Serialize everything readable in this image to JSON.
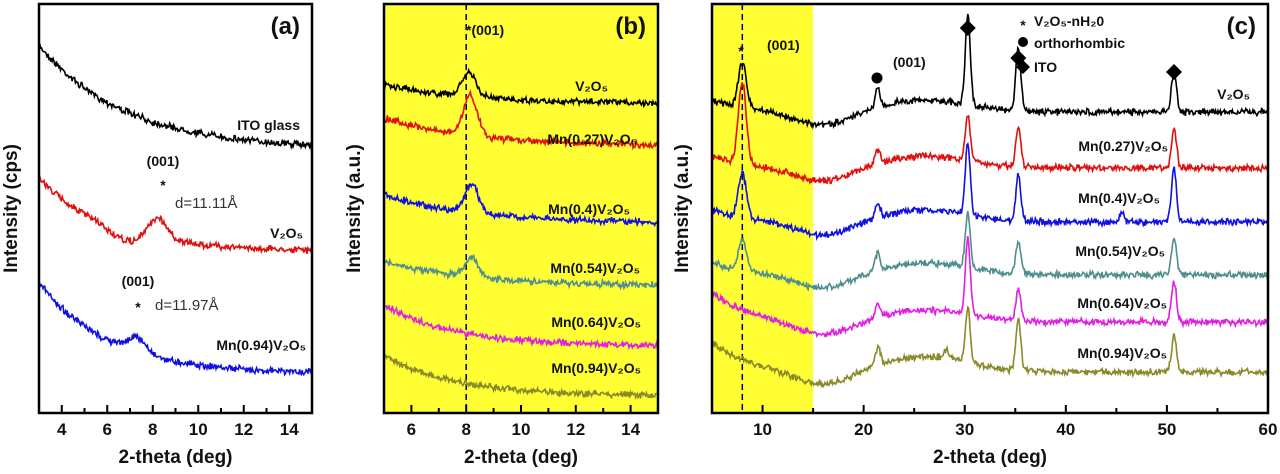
{
  "chart_data": [
    {
      "type": "line",
      "panel_label": "(a)",
      "xlabel": "2-theta (deg)",
      "ylabel": "Intensity (cps)",
      "xlim": [
        3,
        15
      ],
      "xticks": [
        4,
        6,
        8,
        10,
        12,
        14
      ],
      "grid": false,
      "series": [
        {
          "name": "ITO glass",
          "color": "#000000",
          "peaks": []
        },
        {
          "name": "V₂O₅",
          "color": "#e01010",
          "peaks": [
            {
              "x": 8.2,
              "height": 0.6,
              "annotation": "(001)",
              "d": "d=11.11Å"
            }
          ]
        },
        {
          "name": "Mn(0.94)V₂O₅",
          "color": "#1010e0",
          "peaks": [
            {
              "x": 7.3,
              "height": 0.4,
              "annotation": "(001)",
              "d": "d=11.97Å"
            }
          ]
        }
      ]
    },
    {
      "type": "line",
      "panel_label": "(b)",
      "xlabel": "2-theta (deg)",
      "ylabel": "Intensity (a.u.)",
      "xlim": [
        5,
        15
      ],
      "xticks": [
        6,
        8,
        10,
        12,
        14
      ],
      "highlight_range": [
        5,
        15
      ],
      "highlight_color": "#ffff33",
      "reference_line_x": 8,
      "annotation": "*(001)",
      "grid": false,
      "series": [
        {
          "name": "V₂O₅",
          "color": "#000000",
          "peaks": [
            {
              "x": 8.1,
              "height": 0.6
            }
          ]
        },
        {
          "name": "Mn(0.27)V₂O₅",
          "color": "#e01010",
          "peaks": [
            {
              "x": 8.15,
              "height": 1.0
            }
          ]
        },
        {
          "name": "Mn(0.4)V₂O₅",
          "color": "#1010e0",
          "peaks": [
            {
              "x": 8.2,
              "height": 0.7
            }
          ]
        },
        {
          "name": "Mn(0.54)V₂O₅",
          "color": "#4f8f8f",
          "peaks": [
            {
              "x": 8.2,
              "height": 0.5
            }
          ]
        },
        {
          "name": "Mn(0.64)V₂O₅",
          "color": "#e020e0",
          "peaks": []
        },
        {
          "name": "Mn(0.94)V₂O₅",
          "color": "#8a8a2a",
          "peaks": []
        }
      ]
    },
    {
      "type": "line",
      "panel_label": "(c)",
      "xlabel": "2-theta (deg)",
      "ylabel": "Intensity (a.u.)",
      "xlim": [
        5,
        60
      ],
      "xticks": [
        10,
        20,
        30,
        40,
        50,
        60
      ],
      "highlight_range": [
        5,
        15
      ],
      "highlight_color": "#ffff33",
      "reference_line_x": 8,
      "annotations": [
        "(001)",
        "(001)"
      ],
      "legend": [
        {
          "marker": "asterisk",
          "label": "V₂O₅-nH₂0"
        },
        {
          "marker": "circle",
          "label": "orthorhombic"
        },
        {
          "marker": "diamond",
          "label": "ITO"
        }
      ],
      "legend_placement": "top-right",
      "grid": false,
      "series": [
        {
          "name": "V₂O₅",
          "color": "#000000",
          "peaks": [
            {
              "x": 8,
              "height": 0.5
            },
            {
              "x": 21.4,
              "height": 0.2
            },
            {
              "x": 30.3,
              "height": 1.0
            },
            {
              "x": 35.3,
              "height": 0.7
            },
            {
              "x": 50.7,
              "height": 0.45
            }
          ]
        },
        {
          "name": "Mn(0.27)V₂O₅",
          "color": "#e01010",
          "peaks": [
            {
              "x": 8,
              "height": 0.9
            },
            {
              "x": 21.4,
              "height": 0.15
            },
            {
              "x": 30.3,
              "height": 0.5
            },
            {
              "x": 35.3,
              "height": 0.45
            },
            {
              "x": 50.7,
              "height": 0.45
            }
          ]
        },
        {
          "name": "Mn(0.4)V₂O₅",
          "color": "#1010e0",
          "peaks": [
            {
              "x": 8,
              "height": 0.5
            },
            {
              "x": 21.4,
              "height": 0.15
            },
            {
              "x": 30.3,
              "height": 0.8
            },
            {
              "x": 35.3,
              "height": 0.5
            },
            {
              "x": 45.5,
              "height": 0.1
            },
            {
              "x": 50.7,
              "height": 0.6
            }
          ]
        },
        {
          "name": "Mn(0.54)V₂O₅",
          "color": "#4f8f8f",
          "peaks": [
            {
              "x": 8,
              "height": 0.35
            },
            {
              "x": 21.4,
              "height": 0.2
            },
            {
              "x": 30.3,
              "height": 0.6
            },
            {
              "x": 35.3,
              "height": 0.35
            },
            {
              "x": 50.7,
              "height": 0.4
            }
          ]
        },
        {
          "name": "Mn(0.64)V₂O₅",
          "color": "#e020e0",
          "peaks": [
            {
              "x": 21.4,
              "height": 0.15
            },
            {
              "x": 30.3,
              "height": 0.85
            },
            {
              "x": 35.3,
              "height": 0.35
            },
            {
              "x": 50.7,
              "height": 0.45
            }
          ]
        },
        {
          "name": "Mn(0.94)V₂O₅",
          "color": "#8a8a2a",
          "peaks": [
            {
              "x": 21.4,
              "height": 0.2
            },
            {
              "x": 28.2,
              "height": 0.1
            },
            {
              "x": 30.3,
              "height": 0.6
            },
            {
              "x": 35.3,
              "height": 0.55
            },
            {
              "x": 50.7,
              "height": 0.4
            }
          ]
        }
      ]
    }
  ]
}
